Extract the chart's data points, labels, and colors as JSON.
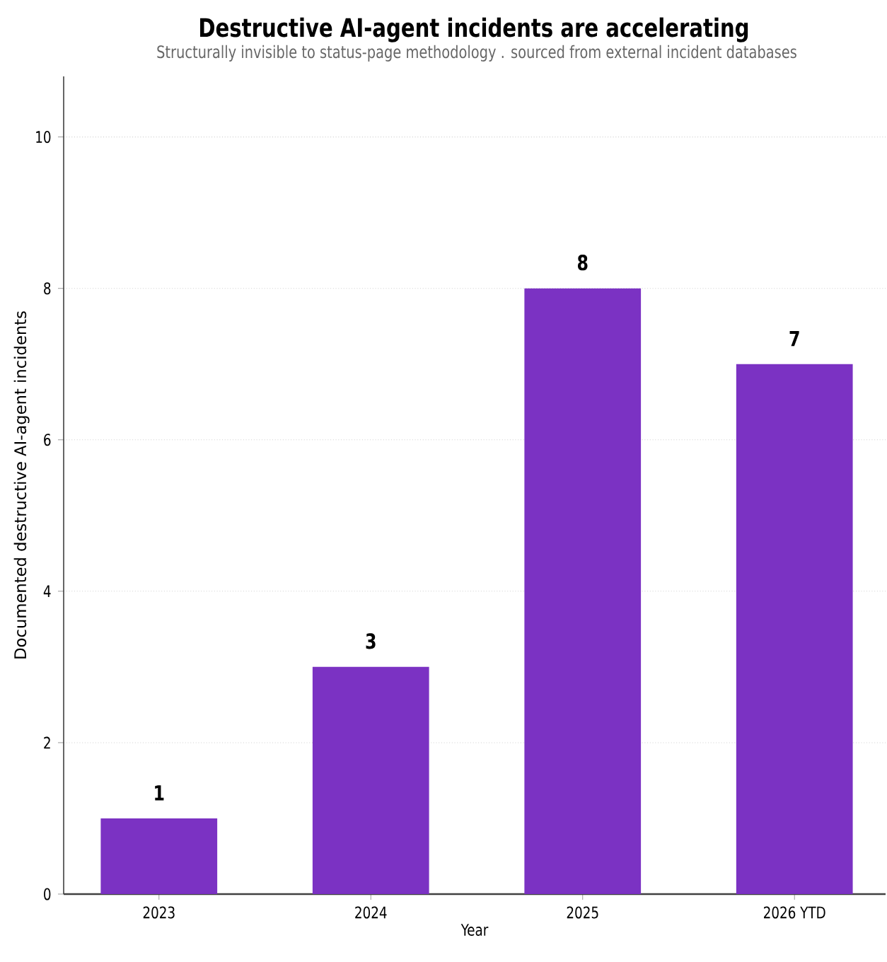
{
  "chart_data": {
    "type": "bar",
    "title": "Destructive AI-agent incidents are accelerating",
    "subtitle": "Structurally invisible to status-page methodology  .  sourced from external incident databases",
    "xlabel": "Year",
    "ylabel": "Documented destructive AI-agent incidents",
    "categories": [
      "2023",
      "2024",
      "2025",
      "2026 YTD"
    ],
    "values": [
      1,
      3,
      8,
      7
    ],
    "color": "#7b32c3",
    "ylim": [
      0,
      10.8
    ],
    "yticks": [
      0,
      2,
      4,
      6,
      8,
      10
    ],
    "grid": "y",
    "data_labels": true
  }
}
